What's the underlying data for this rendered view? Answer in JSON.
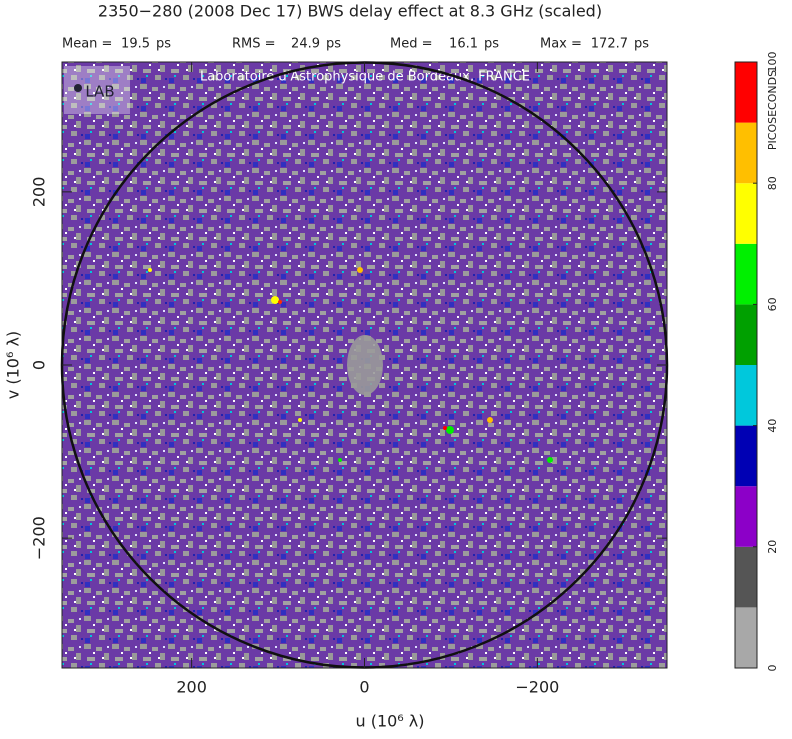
{
  "chart_data": {
    "type": "heatmap",
    "title": "2350−280  (2008 Dec 17)   BWS delay effect at  8.3 GHz (scaled)",
    "stats": [
      {
        "label": "Mean =",
        "value": 19.5,
        "unit": "ps"
      },
      {
        "label": "RMS =",
        "value": 24.9,
        "unit": "ps"
      },
      {
        "label": "Med =",
        "value": 16.1,
        "unit": "ps"
      },
      {
        "label": "Max =",
        "value": 172.7,
        "unit": "ps"
      }
    ],
    "watermark": "Laboratoire d'Astrophysique de Bordeaux, FRANCE",
    "logo": "LAB",
    "xlabel": "u  (10⁶ λ)",
    "ylabel": "v  (10⁶ λ)",
    "xlim": [
      350,
      -350
    ],
    "xticks": [
      200,
      0,
      {
        "value": -200,
        "label": "−200"
      }
    ],
    "ylim": [
      -350,
      350
    ],
    "yticks": [
      {
        "value": -200,
        "label": "−200"
      },
      0,
      200
    ],
    "circle_radius": 350,
    "colorbar": {
      "label": "PICOSECONDS",
      "lim": [
        0,
        100
      ],
      "levels": [
        0,
        10,
        20,
        30,
        40,
        50,
        60,
        70,
        80,
        90,
        100
      ],
      "colors": [
        "#a8a8a8",
        "#555555",
        "#8c00c8",
        "#0000b4",
        "#00c8dc",
        "#00a000",
        "#00f000",
        "#ffff00",
        "#ffbf00",
        "#ff0000"
      ],
      "ticks": [
        0,
        20,
        40,
        60,
        80,
        100
      ]
    }
  }
}
